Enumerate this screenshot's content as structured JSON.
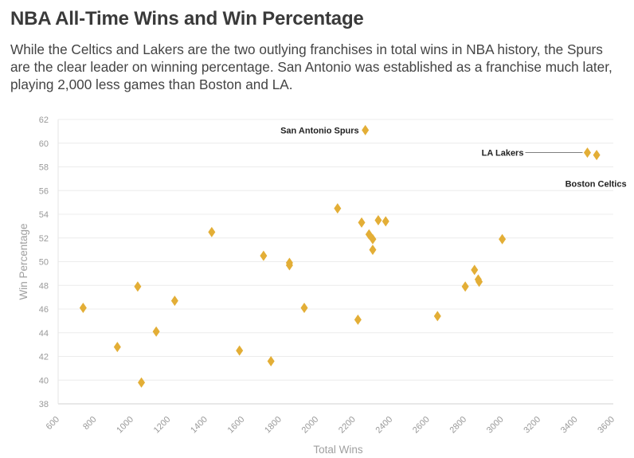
{
  "header": {
    "title": "NBA All-Time Wins and Win Percentage",
    "subtitle": "While the Celtics and Lakers are the two outlying franchises in total wins in NBA history, the Spurs are the clear leader on winning percentage. San Antonio was established as a franchise much later, playing 2,000 less games than Boston and LA."
  },
  "chart_data": {
    "type": "scatter",
    "title": "NBA All-Time Wins and Win Percentage",
    "xlabel": "Total Wins",
    "ylabel": "Win Percentage",
    "xlim": [
      600,
      3600
    ],
    "ylim": [
      38,
      62
    ],
    "xticks": [
      "600",
      "800",
      "1000",
      "1200",
      "1400",
      "1600",
      "1800",
      "2000",
      "2200",
      "2400",
      "2600",
      "2800",
      "3000",
      "3200",
      "3400",
      "3600"
    ],
    "yticks": [
      "38",
      "40",
      "42",
      "44",
      "46",
      "48",
      "50",
      "52",
      "54",
      "56",
      "58",
      "60",
      "62"
    ],
    "grid": "horizontal",
    "marker": "diamond",
    "color": "#E3AE36",
    "points": [
      {
        "x": 3460,
        "y": 59.2
      },
      {
        "x": 3510,
        "y": 59.0
      },
      {
        "x": 2260,
        "y": 61.1
      },
      {
        "x": 3000,
        "y": 51.9
      },
      {
        "x": 2870,
        "y": 48.5
      },
      {
        "x": 2875,
        "y": 48.3
      },
      {
        "x": 2850,
        "y": 49.3
      },
      {
        "x": 2800,
        "y": 47.9
      },
      {
        "x": 2650,
        "y": 45.4
      },
      {
        "x": 2370,
        "y": 53.4
      },
      {
        "x": 2330,
        "y": 53.5
      },
      {
        "x": 2240,
        "y": 53.3
      },
      {
        "x": 2280,
        "y": 52.3
      },
      {
        "x": 2300,
        "y": 51.9
      },
      {
        "x": 2300,
        "y": 51.0
      },
      {
        "x": 2110,
        "y": 54.5
      },
      {
        "x": 2220,
        "y": 45.1
      },
      {
        "x": 1930,
        "y": 46.1
      },
      {
        "x": 1850,
        "y": 49.7
      },
      {
        "x": 1850,
        "y": 49.9
      },
      {
        "x": 1710,
        "y": 50.5
      },
      {
        "x": 1750,
        "y": 41.6
      },
      {
        "x": 1580,
        "y": 42.5
      },
      {
        "x": 1430,
        "y": 52.5
      },
      {
        "x": 1230,
        "y": 46.7
      },
      {
        "x": 1130,
        "y": 44.1
      },
      {
        "x": 1030,
        "y": 47.9
      },
      {
        "x": 1050,
        "y": 39.8
      },
      {
        "x": 920,
        "y": 42.8
      },
      {
        "x": 735,
        "y": 46.1
      }
    ],
    "annotations": [
      {
        "label": "San Antonio Spurs",
        "x": 2260,
        "y": 61.1
      },
      {
        "label": "LA Lakers",
        "x": 3460,
        "y": 59.2
      },
      {
        "label": "Boston Celtics",
        "x": 3510,
        "y": 59.0
      }
    ]
  }
}
